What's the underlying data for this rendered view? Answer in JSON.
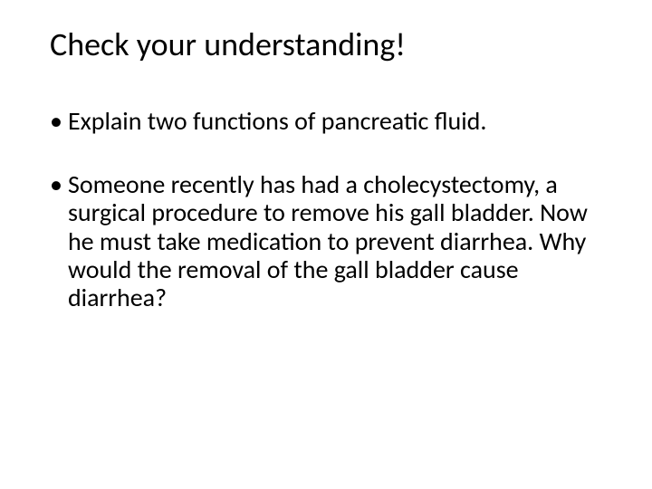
{
  "slide": {
    "title": "Check your understanding!",
    "title_fontsize": 36,
    "title_color": "#000000",
    "background_color": "#ffffff",
    "body_fontsize": 28,
    "body_color": "#000000",
    "bullet_char": "•",
    "bullets": [
      {
        "text": "Explain two functions of pancreatic fluid."
      },
      {
        "text": "Someone recently has had a cholecystectomy, a surgical procedure to remove his gall bladder. Now he must take medication to prevent diarrhea. Why would the removal of the gall bladder cause diarrhea?"
      }
    ]
  }
}
